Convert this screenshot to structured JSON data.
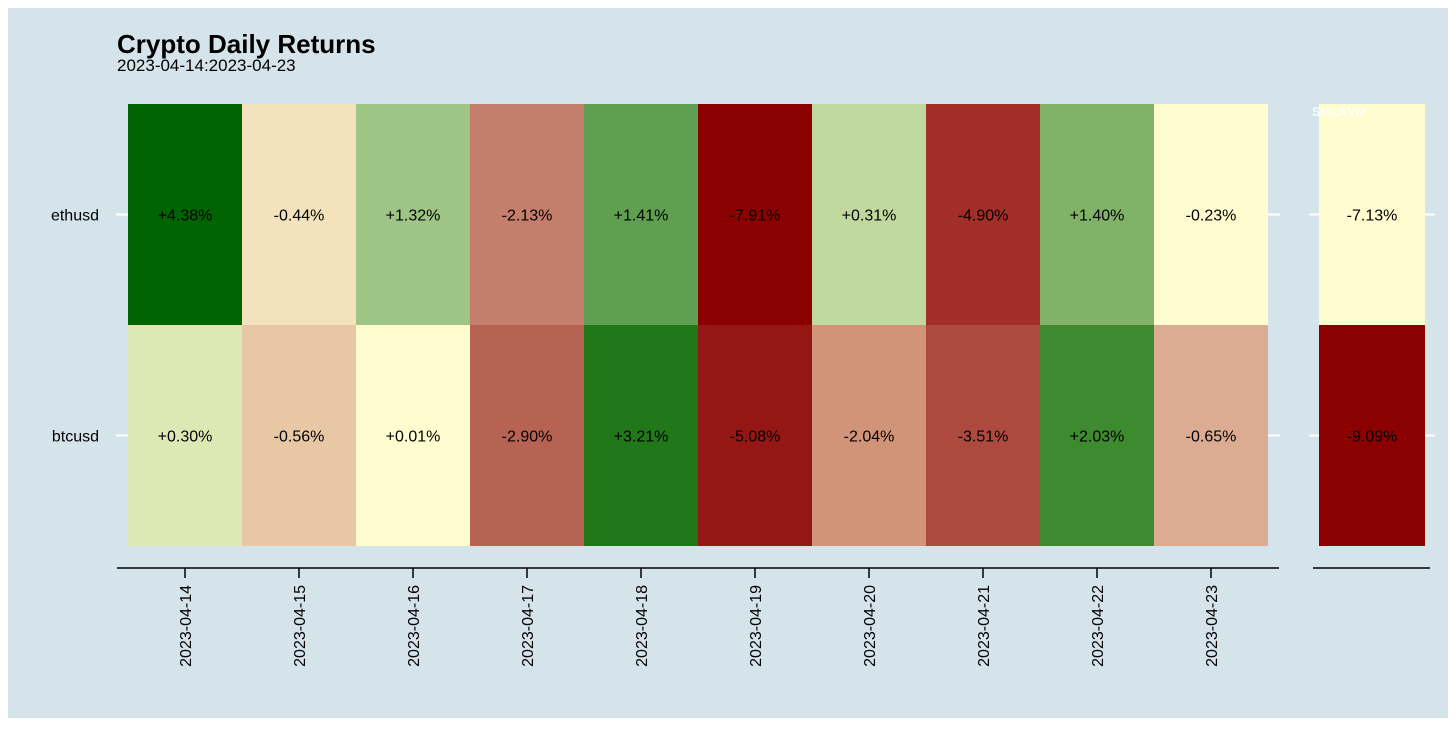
{
  "chart_data": {
    "type": "heatmap",
    "title": "Crypto Daily Returns",
    "subtitle": "2023-04-14:2023-04-23",
    "watermark": "StockViz",
    "rows": [
      "ethusd",
      "btcusd"
    ],
    "columns": [
      "2023-04-14",
      "2023-04-15",
      "2023-04-16",
      "2023-04-17",
      "2023-04-18",
      "2023-04-19",
      "2023-04-20",
      "2023-04-21",
      "2023-04-22",
      "2023-04-23"
    ],
    "values": [
      [
        4.38,
        -0.44,
        1.32,
        -2.13,
        1.41,
        -7.91,
        0.31,
        -4.9,
        1.4,
        -0.23
      ],
      [
        0.3,
        -0.56,
        0.01,
        -2.9,
        3.21,
        -5.08,
        -2.04,
        -3.51,
        2.03,
        -0.65
      ]
    ],
    "labels": [
      [
        "+4.38%",
        "-0.44%",
        "+1.32%",
        "-2.13%",
        "+1.41%",
        "-7.91%",
        "+0.31%",
        "-4.90%",
        "+1.40%",
        "-0.23%"
      ],
      [
        "+0.30%",
        "-0.56%",
        "+0.01%",
        "-2.90%",
        "+3.21%",
        "-5.08%",
        "-2.04%",
        "-3.51%",
        "+2.03%",
        "-0.65%"
      ]
    ],
    "cell_colors": [
      [
        "#006400",
        "#f3e2bb",
        "#9ec585",
        "#c37f6b",
        "#5fa050",
        "#8b0000",
        "#bfd99e",
        "#a22e28",
        "#80b268",
        "#fffdd0"
      ],
      [
        "#dee8b5",
        "#e8c7a4",
        "#fffdd0",
        "#b66353",
        "#207819",
        "#941715",
        "#d29479",
        "#ae4940",
        "#3e8a2f",
        "#dbac91"
      ]
    ],
    "summary": {
      "values": [
        -7.13,
        -9.09
      ],
      "labels": [
        "-7.13%",
        "-9.09%"
      ],
      "cell_colors": [
        "#fffdd0",
        "#8b0000"
      ]
    },
    "colors": {
      "background": "#d5e4eb",
      "axis": "#000000",
      "tick": "#ffffff",
      "text": "#000000",
      "watermark": "#ffffff"
    }
  }
}
